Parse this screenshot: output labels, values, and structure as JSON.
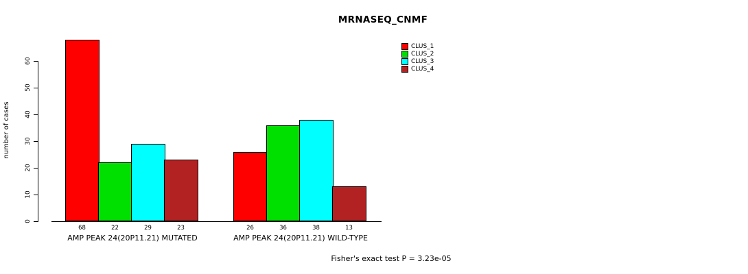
{
  "chart_data": {
    "type": "bar",
    "title": "MRNASEQ_CNMF",
    "xlabel": "",
    "ylabel": "number of cases",
    "ylim": [
      0,
      68
    ],
    "yticks": [
      0,
      10,
      20,
      30,
      40,
      50,
      60
    ],
    "grid": false,
    "legend_position": "top-right",
    "categories": [
      "AMP PEAK 24(20P11.21) MUTATED",
      "AMP PEAK 24(20P11.21) WILD-TYPE"
    ],
    "series": [
      {
        "name": "CLUS_1",
        "color": "#FF0000",
        "values": [
          68,
          26
        ]
      },
      {
        "name": "CLUS_2",
        "color": "#00E000",
        "values": [
          22,
          36
        ]
      },
      {
        "name": "CLUS_3",
        "color": "#00FFFF",
        "values": [
          29,
          38
        ]
      },
      {
        "name": "CLUS_4",
        "color": "#B22222",
        "values": [
          23,
          13
        ]
      }
    ],
    "value_labels": [
      [
        68,
        22,
        29,
        23
      ],
      [
        26,
        36,
        38,
        13
      ]
    ],
    "annotation": "Fisher's exact test P = 3.23e-05"
  }
}
